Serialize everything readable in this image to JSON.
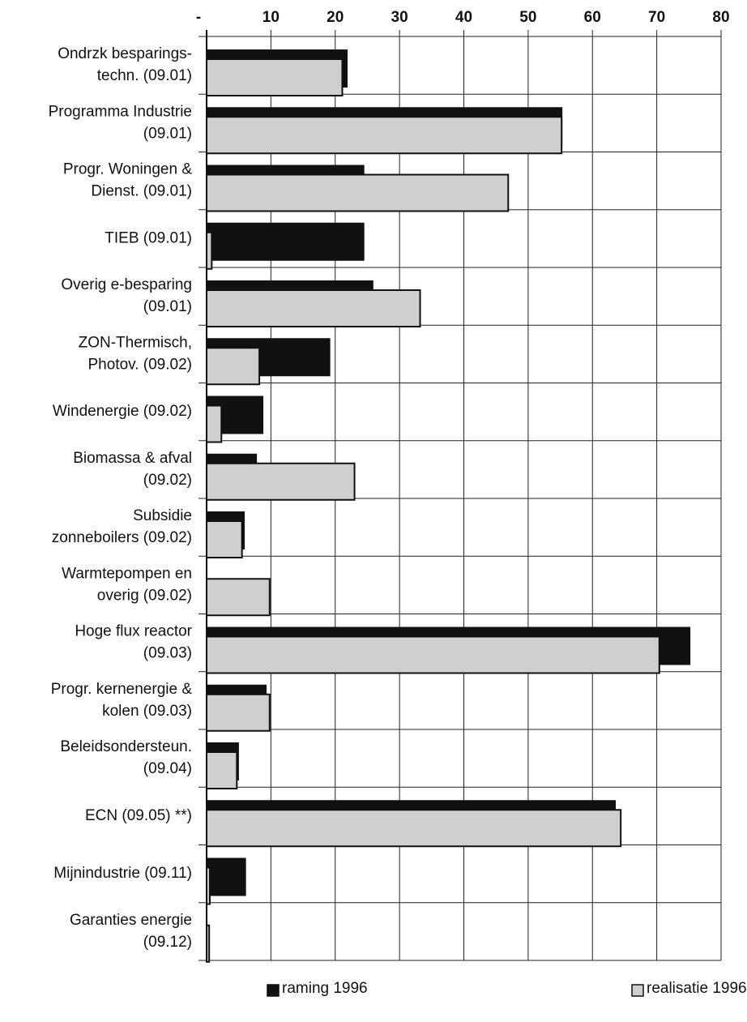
{
  "chart_data": {
    "type": "bar",
    "orientation": "horizontal",
    "categories": [
      [
        "Ondrzk besparings-",
        "techn.  (09.01)"
      ],
      [
        "Programma Industrie",
        "(09.01)"
      ],
      [
        "Progr. Woningen &",
        "Dienst. (09.01)"
      ],
      [
        "TIEB (09.01)"
      ],
      [
        "Overig e-besparing",
        "(09.01)"
      ],
      [
        "ZON-Thermisch,",
        "Photov. (09.02)"
      ],
      [
        "Windenergie (09.02)"
      ],
      [
        "Biomassa & afval",
        "(09.02)"
      ],
      [
        "Subsidie",
        "zonneboilers (09.02)"
      ],
      [
        "Warmtepompen en",
        "overig (09.02)"
      ],
      [
        "Hoge flux reactor",
        "(09.03)"
      ],
      [
        "Progr. kernenergie &",
        "kolen (09.03)"
      ],
      [
        "Beleidsondersteun.",
        "(09.04)"
      ],
      [
        "ECN (09.05) **)"
      ],
      [
        "Mijnindustrie (09.11)"
      ],
      [
        "Garanties energie",
        "(09.12)"
      ]
    ],
    "series": [
      {
        "name": "raming 1996",
        "color": "#111111",
        "values": [
          21.8,
          55.2,
          24.4,
          24.4,
          25.8,
          19.1,
          8.7,
          7.7,
          5.8,
          0,
          75.1,
          9.2,
          4.9,
          63.5,
          6.0,
          0
        ]
      },
      {
        "name": "realisatie 1996",
        "color": "#cfcfcf",
        "values": [
          21.1,
          55.2,
          46.9,
          0.8,
          33.2,
          8.2,
          2.3,
          23.0,
          5.5,
          9.8,
          70.4,
          9.8,
          4.7,
          64.4,
          0.5,
          0.4
        ]
      }
    ],
    "xlim": [
      0,
      80
    ],
    "xticks": [
      {
        "value": 0,
        "label": "-"
      },
      10,
      20,
      30,
      40,
      50,
      60,
      70,
      80
    ],
    "grid": true,
    "legend": "bottom"
  }
}
